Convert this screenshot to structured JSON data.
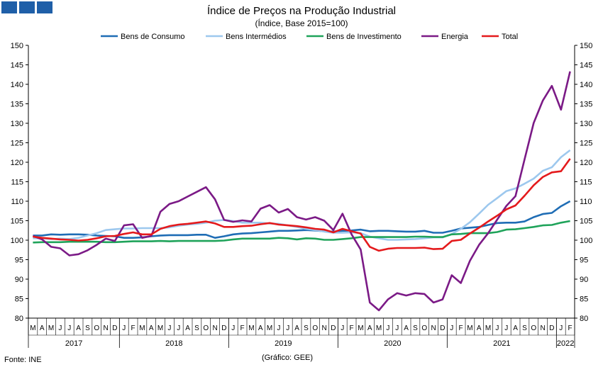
{
  "chart_data": {
    "type": "line",
    "title": "Índice de Preços na Produção Industrial",
    "subtitle": "(Índice, Base 2015=100)",
    "source": "Fonte: INE",
    "credit": "(Gráfico: GEE)",
    "ylim": [
      80,
      150
    ],
    "yticks": [
      80,
      85,
      90,
      95,
      100,
      105,
      110,
      115,
      120,
      125,
      130,
      135,
      140,
      145,
      150
    ],
    "legend_position": "top",
    "grid": false,
    "x_months": [
      "M",
      "A",
      "M",
      "J",
      "J",
      "A",
      "S",
      "O",
      "N",
      "D",
      "J",
      "F",
      "M",
      "A",
      "M",
      "J",
      "J",
      "A",
      "S",
      "O",
      "N",
      "D",
      "J",
      "F",
      "M",
      "A",
      "M",
      "J",
      "J",
      "A",
      "S",
      "O",
      "N",
      "D",
      "J",
      "F",
      "M",
      "A",
      "M",
      "J",
      "J",
      "A",
      "S",
      "O",
      "N",
      "D",
      "J",
      "F",
      "M",
      "A",
      "M",
      "J",
      "J",
      "A",
      "S",
      "O",
      "N",
      "D",
      "J",
      "F"
    ],
    "years": [
      {
        "label": "2017",
        "start": 0,
        "end": 9
      },
      {
        "label": "2018",
        "start": 10,
        "end": 21
      },
      {
        "label": "2019",
        "start": 22,
        "end": 33
      },
      {
        "label": "2020",
        "start": 34,
        "end": 45
      },
      {
        "label": "2021",
        "start": 46,
        "end": 57
      },
      {
        "label": "2022",
        "start": 58,
        "end": 59
      }
    ],
    "series": [
      {
        "name": "Bens de Consumo",
        "color": "#1f6db5",
        "values": [
          101.2,
          101.2,
          101.5,
          101.4,
          101.5,
          101.5,
          101.4,
          101.2,
          101.1,
          101.0,
          100.6,
          100.6,
          100.7,
          101.0,
          101.2,
          101.3,
          101.3,
          101.3,
          101.4,
          101.4,
          100.6,
          101.0,
          101.5,
          101.7,
          101.8,
          102.0,
          102.2,
          102.4,
          102.4,
          102.5,
          102.6,
          102.5,
          102.3,
          102.2,
          102.4,
          102.5,
          102.7,
          102.3,
          102.4,
          102.4,
          102.3,
          102.2,
          102.2,
          102.4,
          101.9,
          101.9,
          102.4,
          103.0,
          103.2,
          103.4,
          103.9,
          104.4,
          104.5,
          104.5,
          104.8,
          105.9,
          106.7,
          107.0,
          108.7,
          110.0
        ]
      },
      {
        "name": "Bens Intermédios",
        "color": "#9dc8ee",
        "values": [
          100.5,
          100.5,
          100.3,
          100.4,
          100.3,
          100.6,
          101.2,
          101.8,
          102.6,
          102.8,
          103.0,
          103.0,
          103.1,
          103.1,
          103.1,
          103.3,
          103.7,
          104.0,
          104.2,
          104.5,
          105.0,
          105.2,
          104.9,
          104.5,
          104.5,
          104.5,
          104.3,
          104.2,
          103.8,
          103.4,
          102.9,
          102.6,
          102.2,
          101.9,
          101.9,
          102.0,
          101.8,
          100.9,
          100.5,
          100.1,
          100.1,
          100.2,
          100.3,
          100.5,
          100.7,
          100.7,
          101.6,
          102.9,
          104.6,
          106.8,
          109.1,
          110.8,
          112.6,
          113.3,
          114.5,
          115.8,
          117.8,
          118.7,
          121.3,
          123.1
        ]
      },
      {
        "name": "Bens de Investimento",
        "color": "#1fa35a",
        "values": [
          99.4,
          99.5,
          99.5,
          99.5,
          99.6,
          99.6,
          99.6,
          99.6,
          99.5,
          99.5,
          99.6,
          99.7,
          99.7,
          99.7,
          99.8,
          99.7,
          99.8,
          99.8,
          99.8,
          99.8,
          99.8,
          99.9,
          100.2,
          100.4,
          100.4,
          100.4,
          100.4,
          100.6,
          100.5,
          100.2,
          100.5,
          100.4,
          100.1,
          100.1,
          100.3,
          100.5,
          100.8,
          100.8,
          100.8,
          100.8,
          100.8,
          100.8,
          100.9,
          100.9,
          100.8,
          100.8,
          101.5,
          101.6,
          101.8,
          101.8,
          101.8,
          102.1,
          102.7,
          102.8,
          103.1,
          103.4,
          103.8,
          103.9,
          104.5,
          104.9
        ]
      },
      {
        "name": "Energia",
        "color": "#7b1a86",
        "values": [
          101.1,
          100.2,
          98.3,
          97.9,
          96.1,
          96.4,
          97.4,
          98.8,
          100.4,
          99.8,
          103.8,
          104.1,
          100.6,
          101.1,
          107.3,
          109.3,
          110.0,
          111.2,
          112.4,
          113.6,
          110.5,
          105.2,
          104.7,
          105.1,
          104.8,
          108.1,
          109.0,
          107.1,
          108.0,
          105.9,
          105.3,
          105.9,
          105.0,
          102.6,
          106.8,
          101.5,
          97.6,
          84.0,
          82.0,
          84.8,
          86.4,
          85.8,
          86.4,
          86.2,
          84.0,
          84.8,
          91.0,
          89.0,
          94.7,
          98.8,
          101.8,
          105.3,
          108.8,
          111.3,
          120.7,
          130.1,
          135.8,
          139.6,
          133.5,
          143.3
        ]
      },
      {
        "name": "Total",
        "color": "#e41a1c",
        "values": [
          100.9,
          100.6,
          100.4,
          100.2,
          100.1,
          99.9,
          100.1,
          100.5,
          101.0,
          101.1,
          101.6,
          102.0,
          101.5,
          101.5,
          102.9,
          103.6,
          104.0,
          104.2,
          104.5,
          104.8,
          104.3,
          103.4,
          103.4,
          103.6,
          103.7,
          104.1,
          104.4,
          104.0,
          103.8,
          103.6,
          103.3,
          102.9,
          102.7,
          102.0,
          102.9,
          102.3,
          101.7,
          98.3,
          97.3,
          97.8,
          98.0,
          98.0,
          98.0,
          98.1,
          97.7,
          97.8,
          99.8,
          100.1,
          101.7,
          103.2,
          104.8,
          106.3,
          107.9,
          108.9,
          111.4,
          114.1,
          116.2,
          117.4,
          117.7,
          120.9
        ]
      }
    ]
  }
}
